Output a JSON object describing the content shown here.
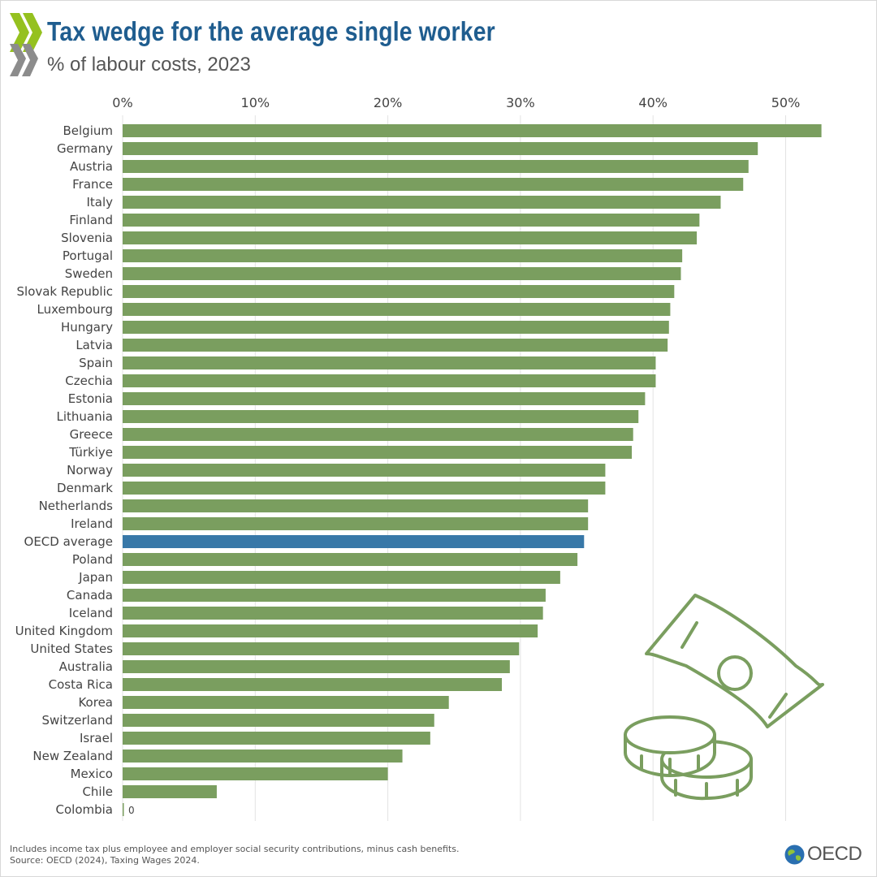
{
  "header": {
    "title": "Tax wedge for the average single worker",
    "subtitle": "% of labour costs, 2023"
  },
  "footer": {
    "note": "Includes income tax plus employee and employer social security contributions, minus cash benefits.",
    "source": "Source: OECD (2024), Taxing Wages 2024.",
    "logo_text": "OECD"
  },
  "colors": {
    "bar": "#7a9e5f",
    "highlight": "#3878a8",
    "grid": "#e3e3e3",
    "illustration": "#7a9e5f"
  },
  "icons": [
    "oecd-chevrons-icon",
    "banknote-icon",
    "coins-icon",
    "globe-icon"
  ],
  "chart_data": {
    "type": "bar",
    "orientation": "horizontal",
    "title": "Tax wedge for the average single worker",
    "subtitle": "% of labour costs, 2023",
    "xlabel": "",
    "ylabel": "",
    "xlim": [
      0,
      55
    ],
    "xticks": [
      0,
      10,
      20,
      30,
      40,
      50
    ],
    "xtick_labels": [
      "0%",
      "10%",
      "20%",
      "30%",
      "40%",
      "50%"
    ],
    "grid": true,
    "axis_position": "top",
    "highlight_category": "OECD average",
    "categories": [
      "Belgium",
      "Germany",
      "Austria",
      "France",
      "Italy",
      "Finland",
      "Slovenia",
      "Portugal",
      "Sweden",
      "Slovak Republic",
      "Luxembourg",
      "Hungary",
      "Latvia",
      "Spain",
      "Czechia",
      "Estonia",
      "Lithuania",
      "Greece",
      "Türkiye",
      "Norway",
      "Denmark",
      "Netherlands",
      "Ireland",
      "OECD average",
      "Poland",
      "Japan",
      "Canada",
      "Iceland",
      "United Kingdom",
      "United States",
      "Australia",
      "Costa Rica",
      "Korea",
      "Switzerland",
      "Israel",
      "New Zealand",
      "Mexico",
      "Chile",
      "Colombia"
    ],
    "values": [
      52.7,
      47.9,
      47.2,
      46.8,
      45.1,
      43.5,
      43.3,
      42.2,
      42.1,
      41.6,
      41.3,
      41.2,
      41.1,
      40.2,
      40.2,
      39.4,
      38.9,
      38.5,
      38.4,
      36.4,
      36.4,
      35.1,
      35.1,
      34.8,
      34.3,
      33.0,
      31.9,
      31.7,
      31.3,
      29.9,
      29.2,
      28.6,
      24.6,
      23.5,
      23.2,
      21.1,
      20.0,
      7.1,
      0
    ],
    "data_labels": [
      {
        "category": "Colombia",
        "text": "0"
      }
    ]
  }
}
